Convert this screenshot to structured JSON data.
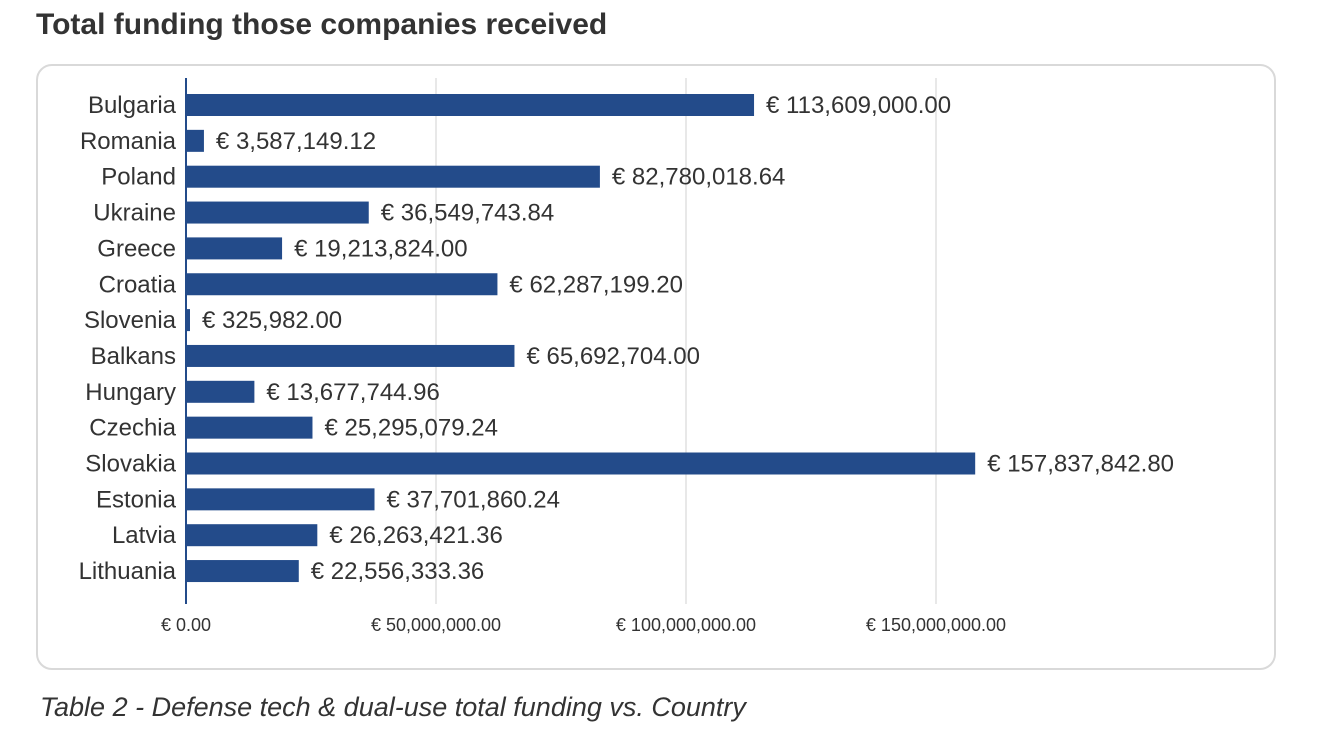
{
  "header": {
    "title": "Total funding those companies received"
  },
  "caption": "Table 2 - Defense tech & dual-use total funding vs. Country",
  "chart_data": {
    "type": "bar",
    "orientation": "horizontal",
    "title": "",
    "xlabel": "",
    "ylabel": "",
    "categories": [
      "Bulgaria",
      "Romania",
      "Poland",
      "Ukraine",
      "Greece",
      "Croatia",
      "Slovenia",
      "Balkans",
      "Hungary",
      "Czechia",
      "Slovakia",
      "Estonia",
      "Latvia",
      "Lithuania"
    ],
    "values": [
      113609000.0,
      3587149.12,
      82780018.64,
      36549743.84,
      19213824.0,
      62287199.2,
      325982.0,
      65692704.0,
      13677744.96,
      25295079.24,
      157837842.8,
      37701860.24,
      26263421.36,
      22556333.36
    ],
    "value_labels": [
      "€ 113,609,000.00",
      "€ 3,587,149.12",
      "€ 82,780,018.64",
      "€ 36,549,743.84",
      "€ 19,213,824.00",
      "€ 62,287,199.20",
      "€ 325,982.00",
      "€ 65,692,704.00",
      "€ 13,677,744.96",
      "€ 25,295,079.24",
      "€ 157,837,842.80",
      "€ 37,701,860.24",
      "€ 26,263,421.36",
      "€ 22,556,333.36"
    ],
    "xlim": [
      0,
      150000000
    ],
    "xticks": [
      0,
      50000000,
      100000000,
      150000000
    ],
    "xtick_labels": [
      "€ 0.00",
      "€ 50,000,000.00",
      "€ 100,000,000.00",
      "€ 150,000,000.00"
    ],
    "grid": true,
    "legend": "none",
    "bar_color": "#234b8a",
    "grid_color": "#d9d9d9"
  }
}
